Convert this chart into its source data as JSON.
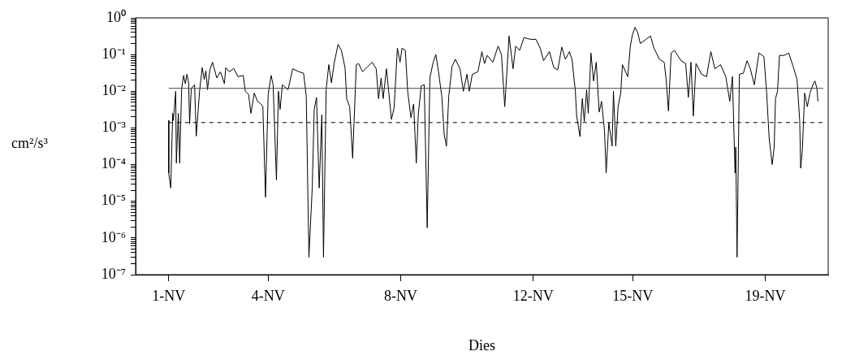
{
  "chart_data": {
    "type": "line",
    "xlabel": "Dies",
    "ylabel": "cm²/s³",
    "log": "y",
    "grid": false,
    "legend": false,
    "xlim": [
      0,
      20.9
    ],
    "xticks": [
      {
        "value": 1,
        "label": "1-NV"
      },
      {
        "value": 4,
        "label": "4-NV"
      },
      {
        "value": 8,
        "label": "8-NV"
      },
      {
        "value": 12,
        "label": "12-NV"
      },
      {
        "value": 15,
        "label": "15-NV"
      },
      {
        "value": 19,
        "label": "19-NV"
      }
    ],
    "ylim": [
      1e-07,
      1
    ],
    "yticks": [
      {
        "value": 1e-07,
        "label": "10⁻⁷"
      },
      {
        "value": 2e-07,
        "label": null
      },
      {
        "value": 3e-07,
        "label": null
      },
      {
        "value": 4e-07,
        "label": null
      },
      {
        "value": 5e-07,
        "label": null
      },
      {
        "value": 6e-07,
        "label": null
      },
      {
        "value": 7e-07,
        "label": null
      },
      {
        "value": 8e-07,
        "label": null
      },
      {
        "value": 9e-07,
        "label": null
      },
      {
        "value": 1e-06,
        "label": "10⁻⁶"
      },
      {
        "value": 2e-06,
        "label": null
      },
      {
        "value": 3e-06,
        "label": null
      },
      {
        "value": 4e-06,
        "label": null
      },
      {
        "value": 5e-06,
        "label": null
      },
      {
        "value": 6e-06,
        "label": null
      },
      {
        "value": 7e-06,
        "label": null
      },
      {
        "value": 8e-06,
        "label": null
      },
      {
        "value": 9e-06,
        "label": null
      },
      {
        "value": 1e-05,
        "label": "10⁻⁵"
      },
      {
        "value": 2e-05,
        "label": null
      },
      {
        "value": 3e-05,
        "label": null
      },
      {
        "value": 4e-05,
        "label": null
      },
      {
        "value": 5e-05,
        "label": null
      },
      {
        "value": 6e-05,
        "label": null
      },
      {
        "value": 7e-05,
        "label": null
      },
      {
        "value": 8e-05,
        "label": null
      },
      {
        "value": 9e-05,
        "label": null
      },
      {
        "value": 0.0001,
        "label": "10⁻⁴"
      },
      {
        "value": 0.0002,
        "label": null
      },
      {
        "value": 0.0003,
        "label": null
      },
      {
        "value": 0.0004,
        "label": null
      },
      {
        "value": 0.0005,
        "label": null
      },
      {
        "value": 0.0006,
        "label": null
      },
      {
        "value": 0.0007,
        "label": null
      },
      {
        "value": 0.0008,
        "label": null
      },
      {
        "value": 0.0009,
        "label": null
      },
      {
        "value": 0.001,
        "label": "10⁻³"
      },
      {
        "value": 0.002,
        "label": null
      },
      {
        "value": 0.003,
        "label": null
      },
      {
        "value": 0.004,
        "label": null
      },
      {
        "value": 0.005,
        "label": null
      },
      {
        "value": 0.006,
        "label": null
      },
      {
        "value": 0.007,
        "label": null
      },
      {
        "value": 0.008,
        "label": null
      },
      {
        "value": 0.009,
        "label": null
      },
      {
        "value": 0.01,
        "label": "10⁻²"
      },
      {
        "value": 0.02,
        "label": null
      },
      {
        "value": 0.03,
        "label": null
      },
      {
        "value": 0.04,
        "label": null
      },
      {
        "value": 0.05,
        "label": null
      },
      {
        "value": 0.06,
        "label": null
      },
      {
        "value": 0.07,
        "label": null
      },
      {
        "value": 0.08,
        "label": null
      },
      {
        "value": 0.09,
        "label": null
      },
      {
        "value": 0.1,
        "label": "10⁻¹"
      },
      {
        "value": 0.2,
        "label": null
      },
      {
        "value": 0.3,
        "label": null
      },
      {
        "value": 0.4,
        "label": null
      },
      {
        "value": 0.5,
        "label": null
      },
      {
        "value": 0.6,
        "label": null
      },
      {
        "value": 0.7,
        "label": null
      },
      {
        "value": 0.8,
        "label": null
      },
      {
        "value": 0.9,
        "label": null
      },
      {
        "value": 1,
        "label": "10⁰"
      }
    ],
    "ref_lines": [
      {
        "axis": "y",
        "value": 0.012,
        "color": "#444444",
        "line_style": "solid"
      },
      {
        "axis": "y",
        "value": 0.0014,
        "color": "#000000",
        "line_style": "dashed"
      }
    ],
    "series": [
      {
        "color": "#000000",
        "x": [
          1,
          1,
          1.06,
          1.12,
          1.14,
          1.21,
          1.23,
          1.29,
          1.33,
          1.39,
          1.45,
          1.5,
          1.55,
          1.6,
          1.63,
          1.68,
          1.78,
          1.83,
          1.93,
          2.01,
          2.07,
          2.12,
          2.17,
          2.24,
          2.32,
          2.45,
          2.56,
          2.68,
          2.72,
          2.83,
          2.96,
          3.09,
          3.25,
          3.31,
          3.41,
          3.48,
          3.58,
          3.68,
          3.78,
          3.84,
          3.92,
          4.0,
          4.09,
          4.15,
          4.25,
          4.31,
          4.36,
          4.43,
          4.6,
          4.74,
          4.93,
          5.07,
          5.15,
          5.23,
          5.33,
          5.39,
          5.46,
          5.54,
          5.62,
          5.67,
          5.75,
          5.83,
          5.91,
          5.99,
          6.11,
          6.21,
          6.32,
          6.37,
          6.46,
          6.55,
          6.66,
          6.73,
          6.85,
          7.01,
          7.14,
          7.26,
          7.33,
          7.41,
          7.47,
          7.57,
          7.72,
          7.8,
          7.9,
          7.98,
          8.04,
          8.14,
          8.21,
          8.31,
          8.39,
          8.47,
          8.53,
          8.62,
          8.71,
          8.8,
          8.88,
          8.98,
          9.06,
          9.14,
          9.24,
          9.31,
          9.38,
          9.45,
          9.55,
          9.65,
          9.79,
          9.89,
          10.0,
          10.07,
          10.16,
          10.33,
          10.45,
          10.53,
          10.61,
          10.78,
          10.94,
          11.04,
          11.14,
          11.27,
          11.39,
          11.47,
          11.59,
          11.72,
          11.92,
          12.08,
          12.21,
          12.31,
          12.49,
          12.62,
          12.74,
          12.86,
          12.97,
          13.09,
          13.17,
          13.27,
          13.31,
          13.41,
          13.48,
          13.54,
          13.61,
          13.66,
          13.74,
          13.82,
          13.9,
          13.99,
          14.06,
          14.15,
          14.2,
          14.28,
          14.38,
          14.42,
          14.49,
          14.56,
          14.64,
          14.69,
          14.85,
          14.93,
          14.99,
          15.07,
          15.15,
          15.23,
          15.4,
          15.54,
          15.64,
          15.81,
          15.95,
          16.01,
          16.08,
          16.16,
          16.26,
          16.46,
          16.6,
          16.68,
          16.76,
          16.83,
          16.91,
          17.08,
          17.23,
          17.36,
          17.48,
          17.65,
          17.81,
          17.93,
          18.01,
          18.09,
          18.11,
          18.15,
          18.22,
          18.34,
          18.45,
          18.55,
          18.67,
          18.81,
          18.96,
          19.04,
          19.12,
          19.21,
          19.27,
          19.31,
          19.37,
          19.43,
          19.57,
          19.71,
          19.84,
          19.96,
          20.04,
          20.07,
          20.12,
          20.19,
          20.27,
          20.35,
          20.45,
          20.5,
          20.56,
          20.59
        ],
        "values": [
          0.0016,
          5.9e-05,
          2.3e-05,
          0.0025,
          0.0016,
          0.01,
          0.00011,
          0.0025,
          0.00011,
          0.012,
          0.027,
          0.016,
          0.029,
          0.017,
          0.0013,
          0.012,
          0.015,
          0.0006,
          0.01,
          0.044,
          0.021,
          0.036,
          0.011,
          0.038,
          0.062,
          0.023,
          0.034,
          0.016,
          0.044,
          0.034,
          0.042,
          0.025,
          0.027,
          0.01,
          0.0081,
          0.0025,
          0.0089,
          0.0053,
          0.0045,
          0.0038,
          1.3e-05,
          0.0081,
          0.027,
          0.015,
          3.8e-05,
          0.01,
          0.0032,
          0.015,
          0.011,
          0.041,
          0.034,
          0.031,
          0.0073,
          3e-07,
          2.3e-05,
          0.0032,
          0.0068,
          2.3e-05,
          0.0023,
          3e-07,
          0.011,
          0.053,
          0.017,
          0.057,
          0.19,
          0.13,
          0.044,
          0.0063,
          0.0038,
          0.00015,
          0.053,
          0.057,
          0.034,
          0.048,
          0.062,
          0.041,
          0.0063,
          0.023,
          0.0063,
          0.041,
          0.0017,
          0.0035,
          0.15,
          0.062,
          0.15,
          0.13,
          0.01,
          0.0019,
          0.0045,
          0.00011,
          0.0023,
          0.014,
          0.015,
          1.9e-06,
          0.023,
          0.062,
          0.1,
          0.034,
          0.0073,
          0.00069,
          0.00032,
          0.0073,
          0.048,
          0.074,
          0.041,
          0.01,
          0.029,
          0.01,
          0.029,
          0.034,
          0.12,
          0.057,
          0.095,
          0.062,
          0.17,
          0.1,
          0.0038,
          0.32,
          0.041,
          0.17,
          0.13,
          0.29,
          0.26,
          0.26,
          0.15,
          0.068,
          0.12,
          0.044,
          0.038,
          0.16,
          0.074,
          0.12,
          0.074,
          0.01,
          0.0021,
          0.00058,
          0.0063,
          0.0015,
          0.011,
          0.0025,
          0.11,
          0.019,
          0.062,
          0.0027,
          0.0053,
          0.00084,
          5.9e-05,
          0.0014,
          0.00032,
          0.01,
          0.00032,
          0.0038,
          0.0089,
          0.053,
          0.025,
          0.17,
          0.34,
          0.55,
          0.4,
          0.2,
          0.26,
          0.32,
          0.15,
          0.074,
          0.062,
          0.021,
          0.0029,
          0.11,
          0.13,
          0.068,
          0.057,
          0.0068,
          0.062,
          0.0021,
          0.057,
          0.029,
          0.025,
          0.12,
          0.041,
          0.053,
          0.025,
          0.0053,
          0.025,
          5.9e-05,
          0.0003,
          3e-07,
          0.029,
          0.031,
          0.068,
          0.041,
          0.015,
          0.11,
          0.088,
          0.01,
          0.0005,
          0.0001,
          0.0003,
          0.0063,
          0.01,
          0.095,
          0.095,
          0.11,
          0.048,
          0.021,
          0.0016,
          8e-05,
          0.00025,
          0.0089,
          0.0038,
          0.0089,
          0.016,
          0.019,
          0.012,
          0.0053
        ]
      }
    ]
  }
}
